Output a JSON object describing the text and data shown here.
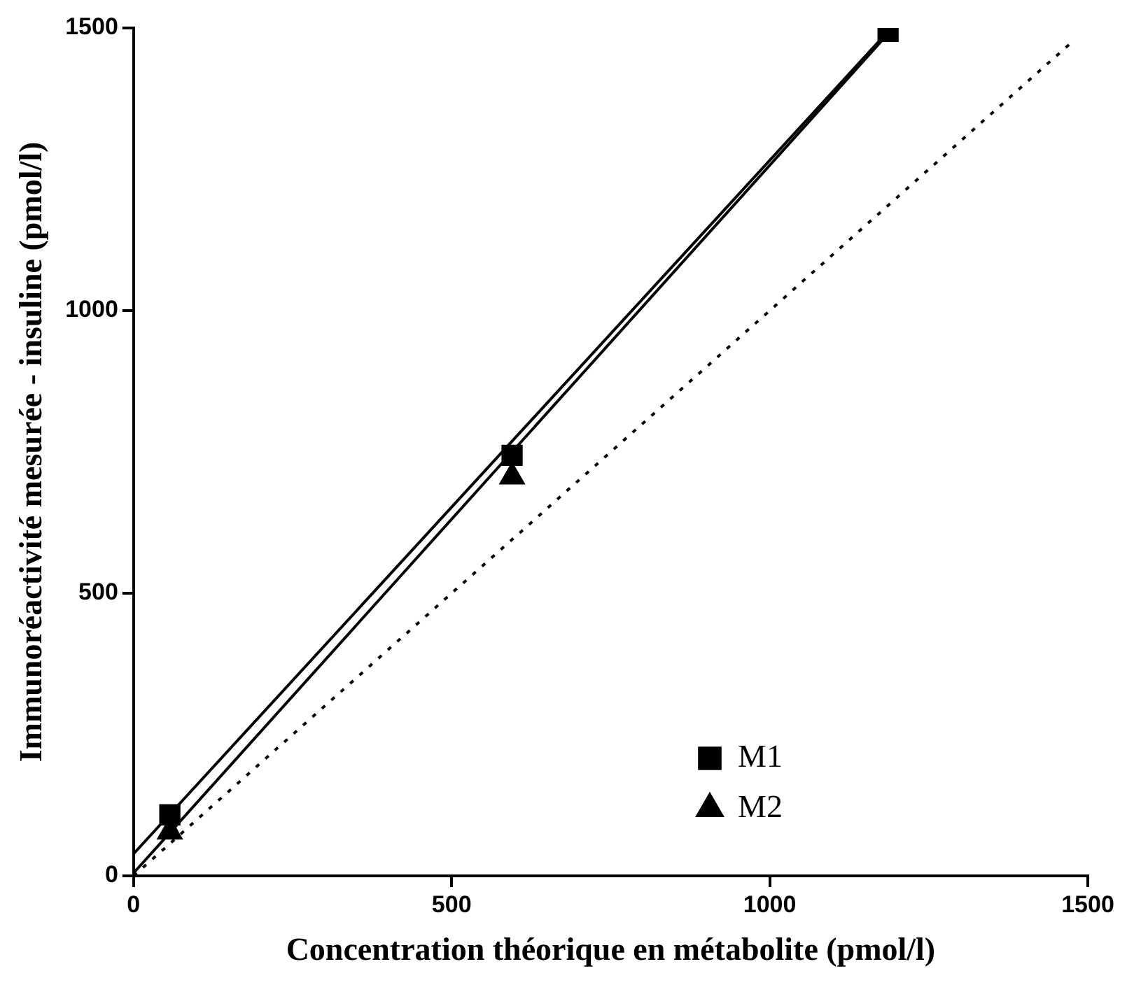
{
  "chart_data": {
    "type": "scatter",
    "xlabel": "Concentration théorique en métabolite (pmol/l)",
    "ylabel": "Immunoréactivité mesurée - insuline (pmol/l)",
    "xlim": [
      0,
      1500
    ],
    "ylim": [
      0,
      1500
    ],
    "xticks": [
      0,
      500,
      1000,
      1500
    ],
    "yticks": [
      0,
      500,
      1000,
      1500
    ],
    "grid": false,
    "legend": "bottom right",
    "series": [
      {
        "name": "M1",
        "marker": "square",
        "color": "#000000",
        "x": [
          57,
          595,
          1186
        ],
        "values": [
          108,
          744,
          1494
        ]
      },
      {
        "name": "M2",
        "marker": "triangle",
        "color": "#000000",
        "x": [
          57,
          595
        ],
        "values": [
          78,
          706
        ]
      },
      {
        "type": "line",
        "marker": "none",
        "line_style": "solid",
        "color": "#000000",
        "x": [
          0,
          1186
        ],
        "values": [
          39,
          1494
        ]
      },
      {
        "type": "line",
        "marker": "none",
        "line_style": "solid",
        "color": "#000000",
        "x": [
          0,
          1186
        ],
        "values": [
          5,
          1490
        ]
      },
      {
        "type": "line",
        "marker": "none",
        "line_style": "dotted",
        "color": "#000000",
        "x": [
          0,
          1480
        ],
        "values": [
          0,
          1480
        ]
      }
    ]
  }
}
